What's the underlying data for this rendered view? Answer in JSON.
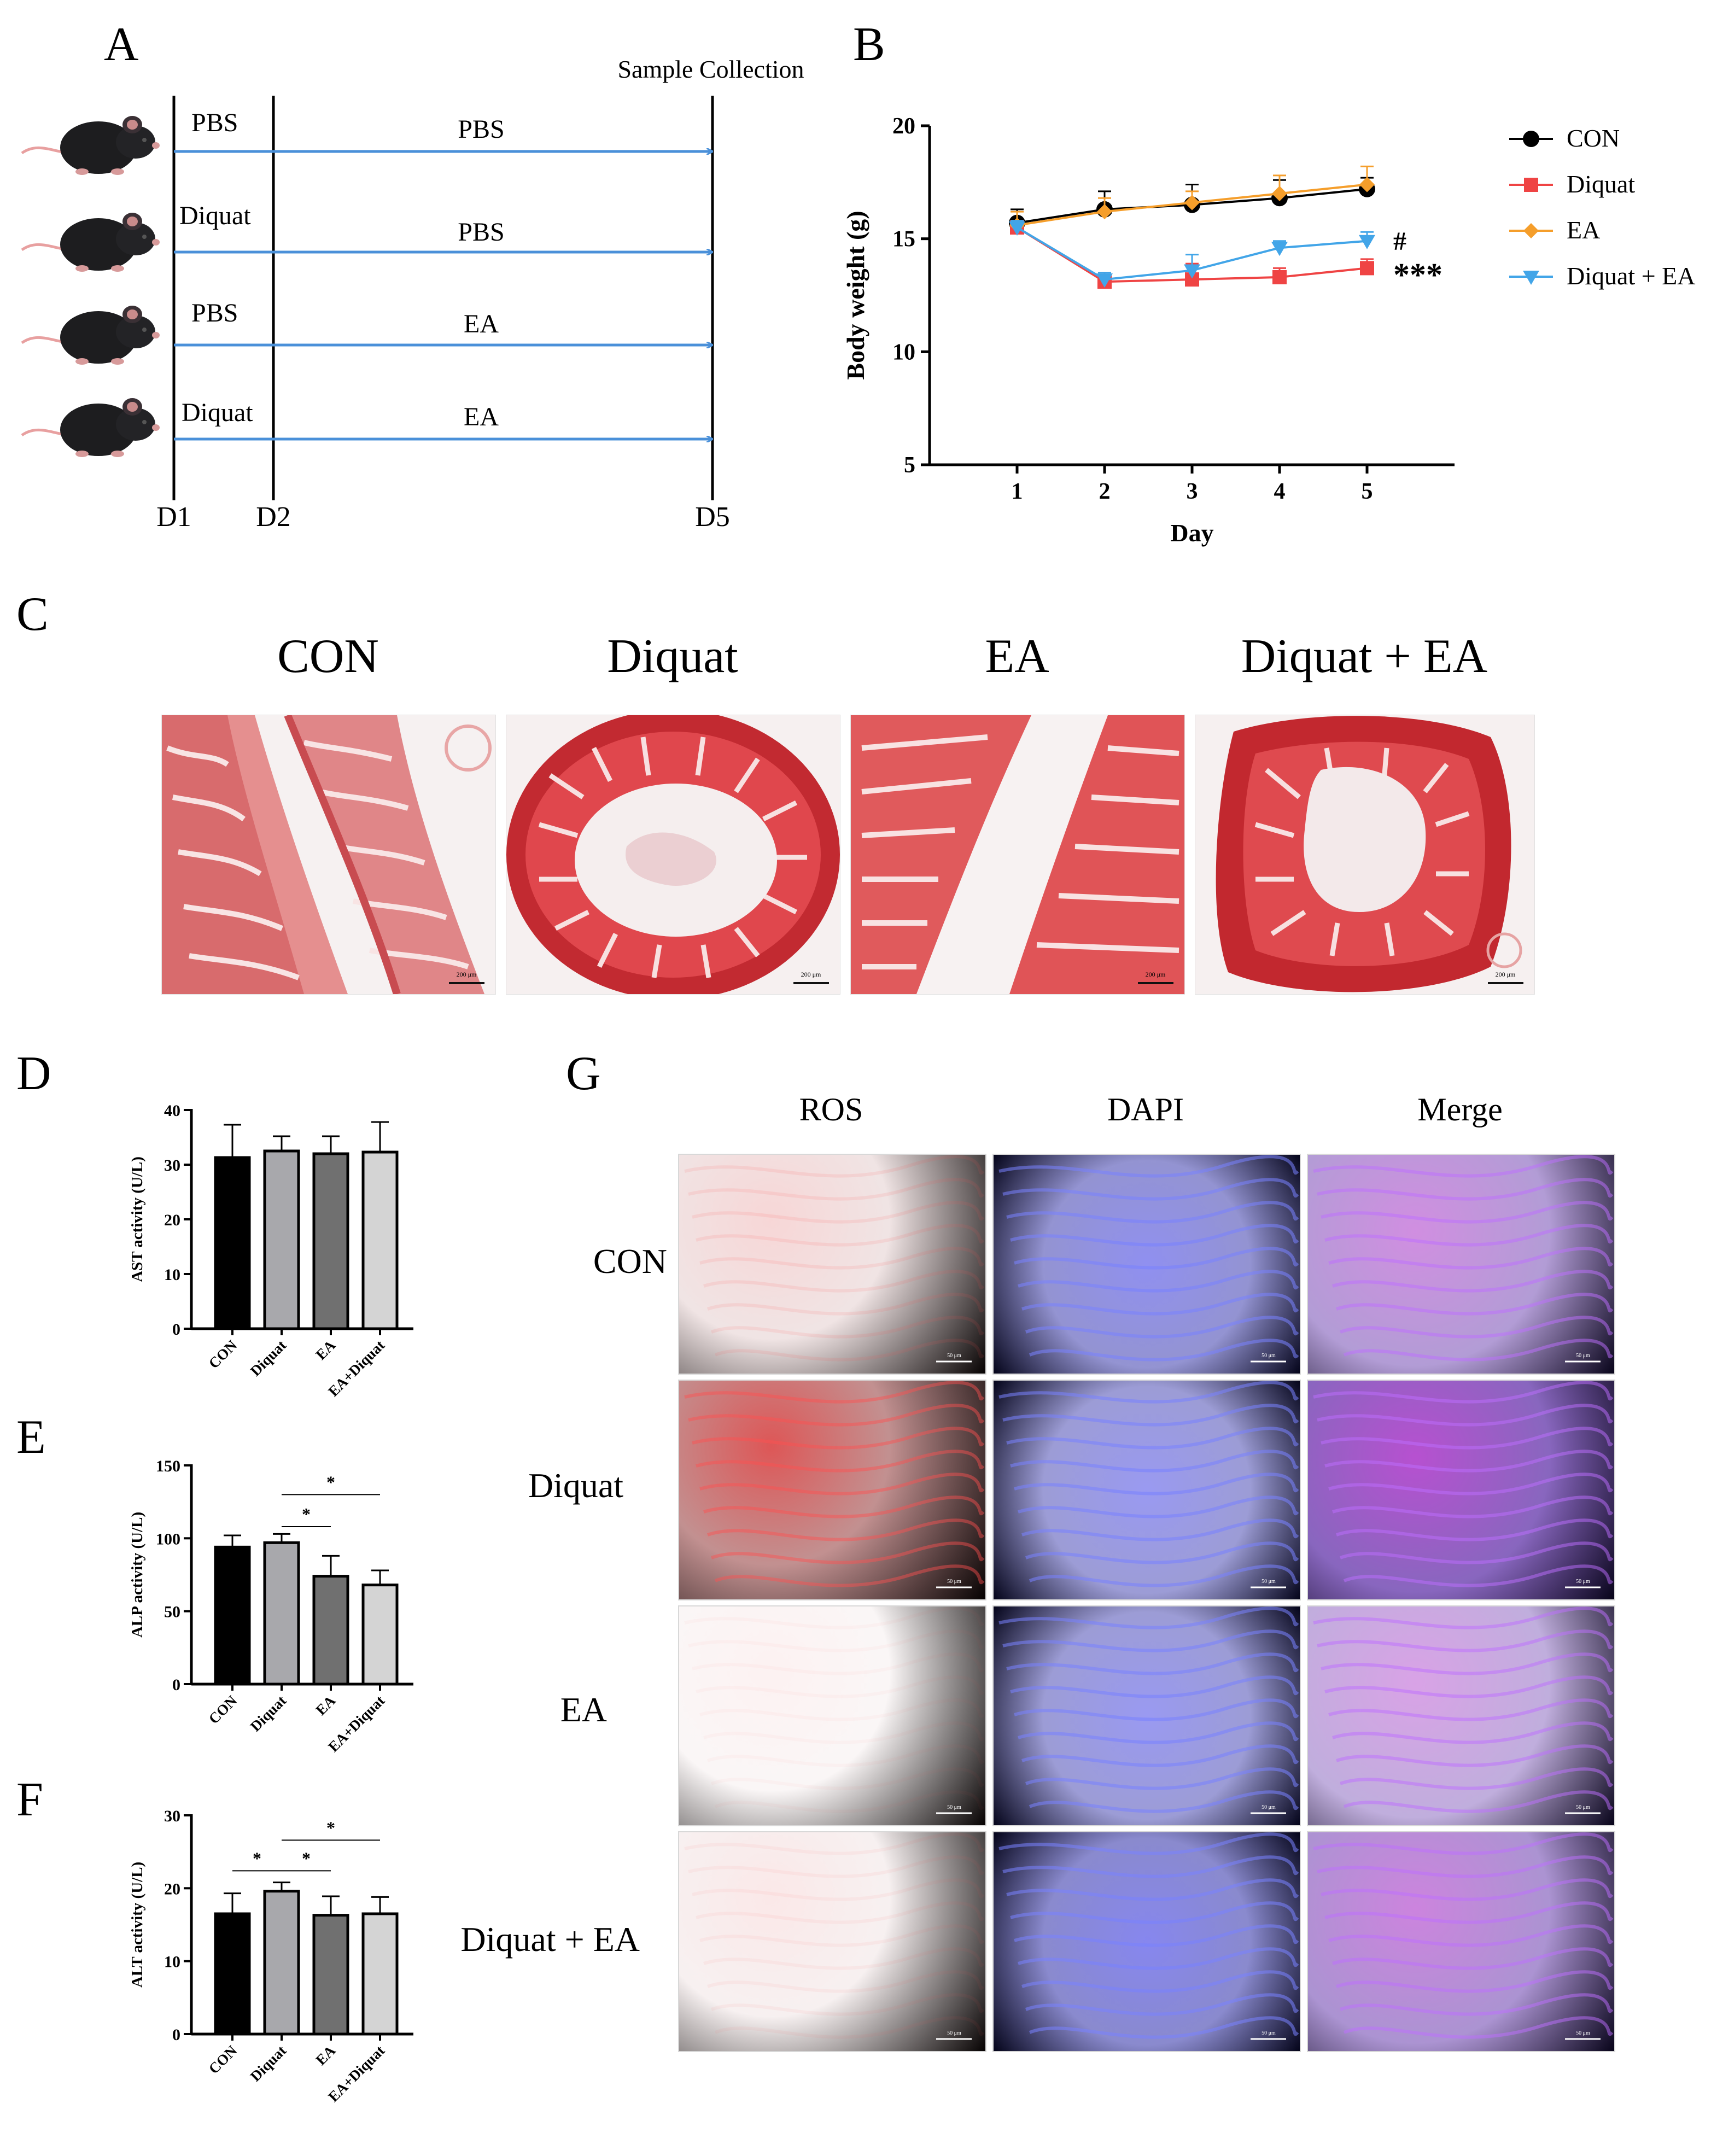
{
  "panels": {
    "A": "A",
    "B": "B",
    "C": "C",
    "D": "D",
    "E": "E",
    "F": "F",
    "G": "G"
  },
  "panel_a": {
    "sample_collection": "Sample Collection",
    "days": [
      "D1",
      "D2",
      "D5"
    ],
    "rows": [
      {
        "first": "PBS",
        "second": "PBS"
      },
      {
        "first": "Diquat",
        "second": "PBS"
      },
      {
        "first": "PBS",
        "second": "EA"
      },
      {
        "first": "Diquat",
        "second": "EA"
      }
    ],
    "arrow_color": "#4a90d9"
  },
  "panel_c": {
    "labels": [
      "CON",
      "Diquat",
      "EA",
      "Diquat + EA"
    ],
    "scale_bar": "200 μm"
  },
  "panel_g": {
    "columns": [
      "ROS",
      "DAPI",
      "Merge"
    ],
    "rows": [
      "CON",
      "Diquat",
      "EA",
      "Diquat + EA"
    ],
    "scale_bar": "50 μm"
  },
  "colors": {
    "con": "#000000",
    "diquat": "#ef4444",
    "ea": "#f59e2b",
    "diquat_ea": "#42a5e8",
    "bar_con": "#000000",
    "bar_diquat": "#a8a8ac",
    "bar_ea": "#707070",
    "bar_eadiquat": "#d4d4d4"
  },
  "chart_data": [
    {
      "id": "B",
      "type": "line",
      "title": "",
      "xlabel": "Day",
      "ylabel": "Body weight (g)",
      "x": [
        1,
        2,
        3,
        4,
        5
      ],
      "xlim": [
        0,
        6
      ],
      "ylim": [
        5,
        20
      ],
      "yticks": [
        5,
        10,
        15,
        20
      ],
      "series": [
        {
          "name": "CON",
          "values": [
            15.7,
            16.3,
            16.5,
            16.8,
            17.2
          ],
          "errors": [
            0.6,
            0.8,
            0.9,
            0.8,
            0.5
          ],
          "marker": "circle"
        },
        {
          "name": "Diquat",
          "values": [
            15.5,
            13.1,
            13.2,
            13.3,
            13.7
          ],
          "errors": [
            0.3,
            0.4,
            0.7,
            0.4,
            0.4
          ],
          "marker": "square"
        },
        {
          "name": "EA",
          "values": [
            15.6,
            16.2,
            16.6,
            17.0,
            17.4
          ],
          "errors": [
            0.6,
            0.6,
            0.5,
            0.8,
            0.8
          ],
          "marker": "diamond"
        },
        {
          "name": "Diquat + EA",
          "values": [
            15.5,
            13.2,
            13.6,
            14.6,
            14.9
          ],
          "errors": [
            0.3,
            0.3,
            0.7,
            0.3,
            0.4
          ],
          "marker": "triangle-down"
        }
      ],
      "annotations": [
        "#",
        "***"
      ]
    },
    {
      "id": "D",
      "type": "bar",
      "ylabel": "AST activity (U/L)",
      "categories": [
        "CON",
        "Diquat",
        "EA",
        "EA+Diquat"
      ],
      "values": [
        31.3,
        32.5,
        32.0,
        32.3
      ],
      "errors": [
        6.0,
        2.7,
        3.2,
        5.5
      ],
      "ylim": [
        0,
        40
      ],
      "yticks": [
        0,
        10,
        20,
        30,
        40
      ],
      "significance": []
    },
    {
      "id": "E",
      "type": "bar",
      "ylabel": "ALP activity (U/L)",
      "categories": [
        "CON",
        "Diquat",
        "EA",
        "EA+Diquat"
      ],
      "values": [
        94,
        97,
        74,
        68
      ],
      "errors": [
        8,
        6,
        14,
        10
      ],
      "ylim": [
        0,
        150
      ],
      "yticks": [
        0,
        50,
        100,
        150
      ],
      "significance": [
        {
          "from": 1,
          "to": 2,
          "label": "*",
          "y": 108
        },
        {
          "from": 1,
          "to": 3,
          "label": "*",
          "y": 130
        }
      ]
    },
    {
      "id": "F",
      "type": "bar",
      "ylabel": "ALT activity (U/L)",
      "categories": [
        "CON",
        "Diquat",
        "EA",
        "EA+Diquat"
      ],
      "values": [
        16.5,
        19.6,
        16.3,
        16.5
      ],
      "errors": [
        2.8,
        1.2,
        2.6,
        2.3
      ],
      "ylim": [
        0,
        30
      ],
      "yticks": [
        0,
        10,
        20,
        30
      ],
      "significance": [
        {
          "from": 0,
          "to": 1,
          "label": "*",
          "y": 22.4
        },
        {
          "from": 1,
          "to": 2,
          "label": "*",
          "y": 22.4
        },
        {
          "from": 1,
          "to": 3,
          "label": "*",
          "y": 26.6
        }
      ]
    }
  ]
}
